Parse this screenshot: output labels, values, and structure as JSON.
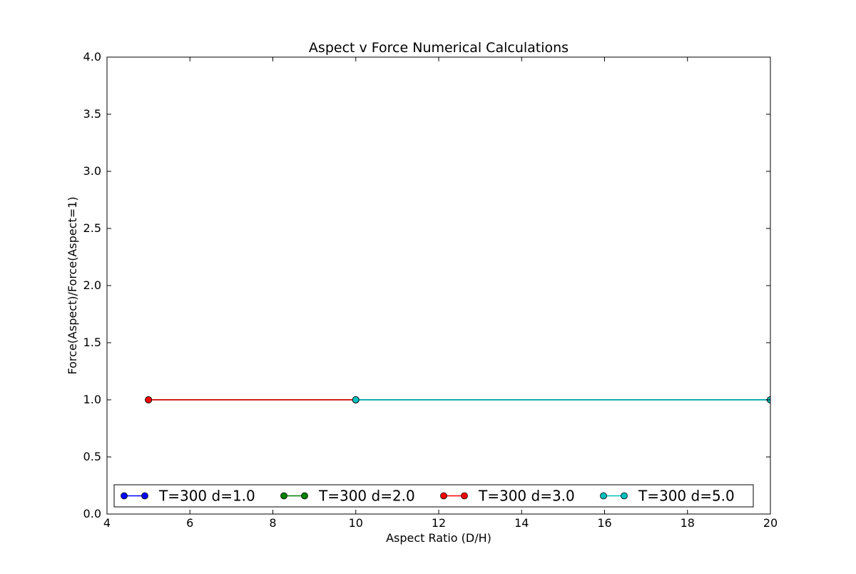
{
  "chart_data": {
    "type": "line",
    "title": "Aspect v Force Numerical Calculations",
    "xlabel": "Aspect Ratio (D/H)",
    "ylabel": "Force(Aspect)/Force(Aspect=1)",
    "xlim": [
      4,
      20
    ],
    "ylim": [
      0.0,
      4.0
    ],
    "xticks": [
      4,
      6,
      8,
      10,
      12,
      14,
      16,
      18,
      20
    ],
    "xtick_labels": [
      "4",
      "6",
      "8",
      "10",
      "12",
      "14",
      "16",
      "18",
      "20"
    ],
    "yticks": [
      0.0,
      0.5,
      1.0,
      1.5,
      2.0,
      2.5,
      3.0,
      3.5,
      4.0
    ],
    "ytick_labels": [
      "0.0",
      "0.5",
      "1.0",
      "1.5",
      "2.0",
      "2.5",
      "3.0",
      "3.5",
      "4.0"
    ],
    "grid": false,
    "legend_placement": "lower-center",
    "series": [
      {
        "name": "T=300 d=1.0",
        "color": "#0000ff",
        "x": [
          5,
          10,
          20
        ],
        "y": [
          1.0,
          1.0,
          1.0
        ]
      },
      {
        "name": "T=300 d=2.0",
        "color": "#008000",
        "x": [
          5,
          10,
          20
        ],
        "y": [
          1.0,
          1.0,
          1.0
        ]
      },
      {
        "name": "T=300 d=3.0",
        "color": "#ff0000",
        "x": [
          5,
          10
        ],
        "y": [
          1.0,
          1.0
        ]
      },
      {
        "name": "T=300 d=5.0",
        "color": "#00bfbf",
        "x": [
          10,
          20
        ],
        "y": [
          1.0,
          1.0
        ]
      }
    ]
  }
}
